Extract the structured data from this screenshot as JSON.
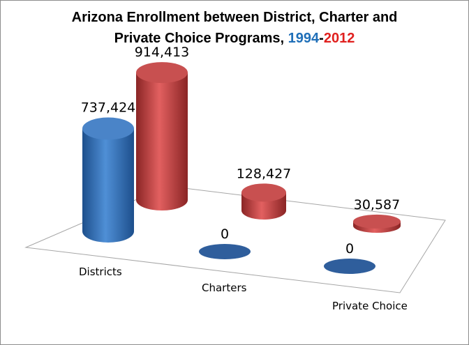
{
  "title": {
    "line1": "Arizona Enrollment between District, Charter and",
    "line2_prefix": "Private Choice Programs, ",
    "year_start": "1994",
    "separator": "-",
    "year_end": "2012"
  },
  "colors": {
    "series_1994": "#2f6fb7",
    "series_2012": "#c03a3a",
    "title_1994": "#1f6fb8",
    "title_2012": "#e0201e"
  },
  "chart_data": {
    "type": "bar",
    "style": "3d-cylinder",
    "title": "Arizona Enrollment between District, Charter and Private Choice Programs, 1994-2012",
    "categories": [
      "Districts",
      "Charters",
      "Private Choice"
    ],
    "series": [
      {
        "name": "1994",
        "values": [
          737424,
          0,
          0
        ],
        "labels": [
          "737,424",
          "0",
          "0"
        ]
      },
      {
        "name": "2012",
        "values": [
          914413,
          128427,
          30587
        ],
        "labels": [
          "914,413",
          "128,427",
          "30,587"
        ]
      }
    ],
    "xlabel": "",
    "ylabel": "",
    "ylim": [
      0,
      1000000
    ],
    "legend": "none",
    "grid": false
  }
}
